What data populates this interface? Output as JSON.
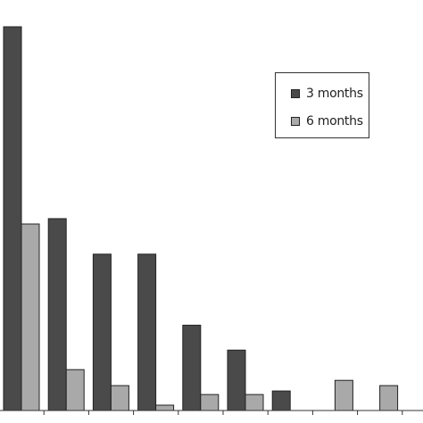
{
  "chart_data": {
    "type": "bar",
    "categories": [
      "",
      "",
      "",
      "",
      "",
      "",
      "",
      "",
      ""
    ],
    "series": [
      {
        "name": "3 months",
        "values": [
          108,
          54,
          44,
          44,
          24,
          17,
          5.5,
          0,
          0
        ]
      },
      {
        "name": "6 months",
        "values": [
          52.5,
          11.5,
          7,
          1.5,
          4.5,
          4.5,
          0,
          8.5,
          7
        ]
      }
    ],
    "colors": {
      "3 months": "#4a4a4a",
      "6 months": "#a9a9a9"
    },
    "ylim": [
      0,
      110
    ],
    "grid": false,
    "legend_position": "top-right"
  }
}
